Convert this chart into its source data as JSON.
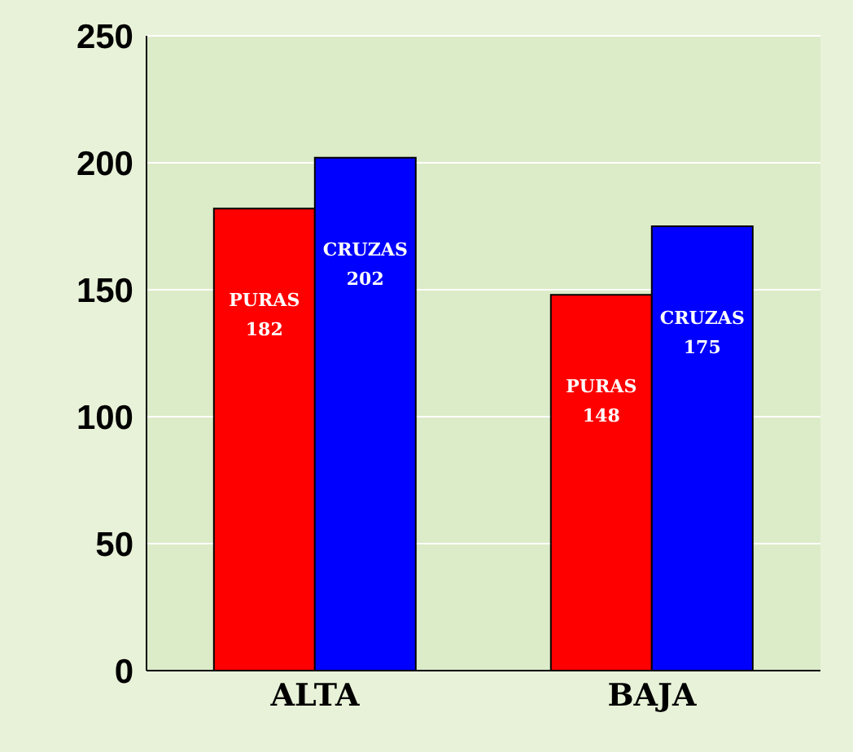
{
  "chart_data": {
    "type": "bar",
    "categories": [
      "ALTA",
      "BAJA"
    ],
    "series": [
      {
        "name": "PURAS",
        "color": "#ff0000",
        "values": [
          182,
          148
        ]
      },
      {
        "name": "CRUZAS",
        "color": "#0000ff",
        "values": [
          202,
          175
        ]
      }
    ],
    "ylim": [
      0,
      250
    ],
    "yticks": [
      0,
      50,
      100,
      150,
      200,
      250
    ],
    "grid": "y",
    "data_labels": true
  }
}
